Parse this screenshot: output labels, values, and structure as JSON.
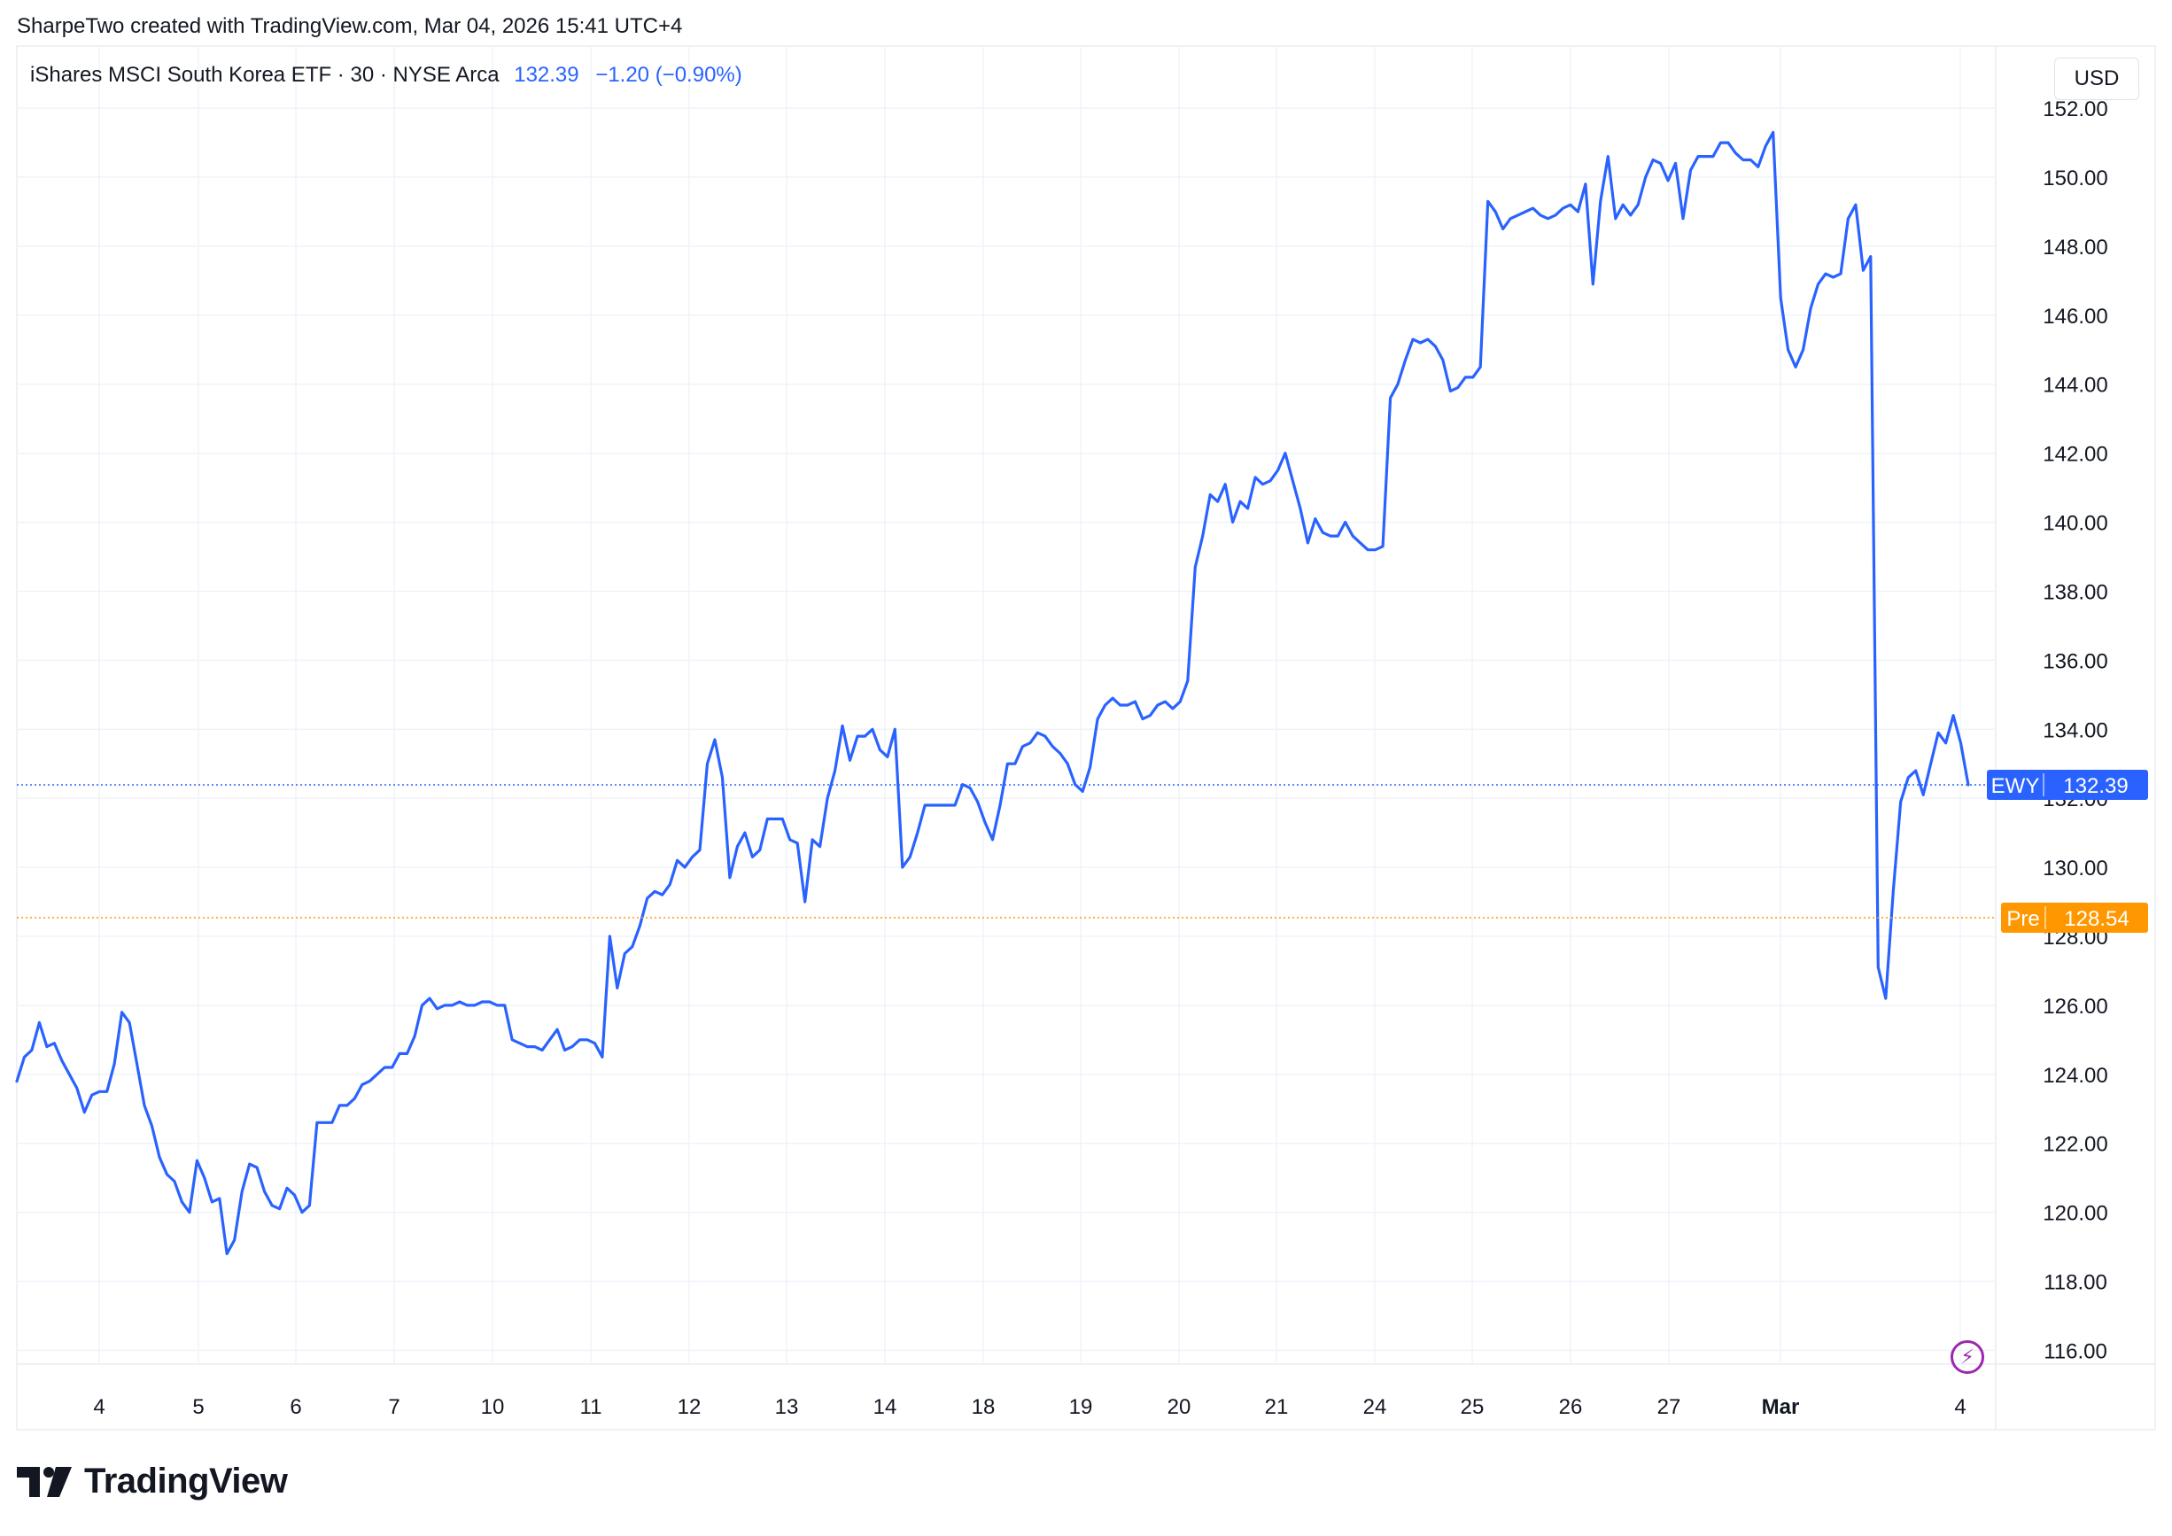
{
  "header": {
    "created_text": "SharpeTwo created with TradingView.com, Mar 04, 2026 15:41 UTC+4"
  },
  "legend": {
    "symbol_text": "iShares MSCI South Korea ETF · 30 · NYSE Arca",
    "last_value": "132.39",
    "change_text": "−1.20 (−0.90%)"
  },
  "currency_button": "USD",
  "logo_text": "TradingView",
  "colors": {
    "line": "#2962ff",
    "pre": "#ff9800",
    "grid": "#f0f3fa",
    "axis_text": "#131722",
    "bolt": "#9c27b0"
  },
  "icons": [
    "tradingview-logo-icon",
    "lightning-bolt-icon"
  ],
  "chart_data": {
    "type": "line",
    "series": [
      {
        "name": "EWY",
        "values": [
          123.8,
          124.5,
          124.7,
          125.5,
          124.8,
          124.9,
          124.4,
          124.0,
          123.6,
          122.9,
          123.4,
          123.5,
          123.5,
          124.3,
          125.8,
          125.5,
          124.3,
          123.1,
          122.5,
          121.6,
          121.1,
          120.9,
          120.3,
          120.0,
          121.5,
          121.0,
          120.3,
          120.4,
          118.8,
          119.2,
          120.6,
          121.4,
          121.3,
          120.6,
          120.2,
          120.1,
          120.7,
          120.5,
          120.0,
          120.2,
          122.6,
          122.6,
          122.6,
          123.1,
          123.1,
          123.3,
          123.7,
          123.8,
          124.0,
          124.2,
          124.2,
          124.6,
          124.6,
          125.1,
          126.0,
          126.2,
          125.9,
          126.0,
          126.0,
          126.1,
          126.0,
          126.0,
          126.1,
          126.1,
          126.0,
          126.0,
          125.0,
          124.9,
          124.8,
          124.8,
          124.7,
          125.0,
          125.3,
          124.7,
          124.8,
          125.0,
          125.0,
          124.9,
          124.5,
          128.0,
          126.5,
          127.5,
          127.7,
          128.3,
          129.1,
          129.3,
          129.2,
          129.5,
          130.2,
          130.0,
          130.3,
          130.5,
          133.0,
          133.7,
          132.6,
          129.7,
          130.6,
          131.0,
          130.3,
          130.5,
          131.4,
          131.4,
          131.4,
          130.8,
          130.7,
          129.0,
          130.8,
          130.6,
          132.0,
          132.8,
          134.1,
          133.1,
          133.8,
          133.8,
          134.0,
          133.4,
          133.2,
          134.0,
          130.0,
          130.3,
          131.0,
          131.8,
          131.8,
          131.8,
          131.8,
          131.8,
          132.4,
          132.3,
          131.9,
          131.3,
          130.8,
          131.8,
          133.0,
          133.0,
          133.5,
          133.6,
          133.9,
          133.8,
          133.5,
          133.3,
          133.0,
          132.4,
          132.2,
          132.9,
          134.3,
          134.7,
          134.9,
          134.7,
          134.7,
          134.8,
          134.3,
          134.4,
          134.7,
          134.8,
          134.6,
          134.8,
          135.4,
          138.7,
          139.6,
          140.8,
          140.6,
          141.1,
          140.0,
          140.6,
          140.4,
          141.3,
          141.1,
          141.2,
          141.5,
          142.0,
          141.2,
          140.4,
          139.4,
          140.1,
          139.7,
          139.6,
          139.6,
          140.0,
          139.6,
          139.4,
          139.2,
          139.2,
          139.3,
          143.6,
          144.0,
          144.7,
          145.3,
          145.2,
          145.3,
          145.1,
          144.7,
          143.8,
          143.9,
          144.2,
          144.2,
          144.5,
          149.3,
          149.0,
          148.5,
          148.8,
          148.9,
          149.0,
          149.1,
          148.9,
          148.8,
          148.9,
          149.1,
          149.2,
          149.0,
          149.8,
          146.9,
          149.3,
          150.6,
          148.8,
          149.2,
          148.9,
          149.2,
          150.0,
          150.5,
          150.4,
          149.9,
          150.4,
          148.8,
          150.2,
          150.6,
          150.6,
          150.6,
          151.0,
          151.0,
          150.7,
          150.5,
          150.5,
          150.3,
          150.9,
          151.3,
          146.5,
          145.0,
          144.5,
          145.0,
          146.2,
          146.9,
          147.2,
          147.1,
          147.2,
          148.8,
          149.2,
          147.3,
          147.7,
          127.1,
          126.2,
          129.3,
          131.9,
          132.6,
          132.8,
          132.1,
          133.0,
          133.9,
          133.6,
          134.4,
          133.6,
          132.39
        ]
      }
    ],
    "x_axis_labels": [
      "4",
      "5",
      "6",
      "7",
      "10",
      "11",
      "12",
      "13",
      "14",
      "18",
      "19",
      "20",
      "21",
      "24",
      "25",
      "26",
      "27",
      "Mar",
      "4"
    ],
    "y_ticks": [
      "116.00",
      "118.00",
      "120.00",
      "122.00",
      "124.00",
      "126.00",
      "128.00",
      "130.00",
      "132.00",
      "134.00",
      "136.00",
      "138.00",
      "140.00",
      "142.00",
      "144.00",
      "146.00",
      "148.00",
      "150.00",
      "152.00"
    ],
    "ylim": [
      115.6,
      153.8
    ],
    "last_price": {
      "label": "EWY",
      "value": "132.39",
      "price": 132.39
    },
    "pre_market": {
      "label": "Pre",
      "value": "128.54",
      "price": 128.54
    },
    "grid": true
  }
}
